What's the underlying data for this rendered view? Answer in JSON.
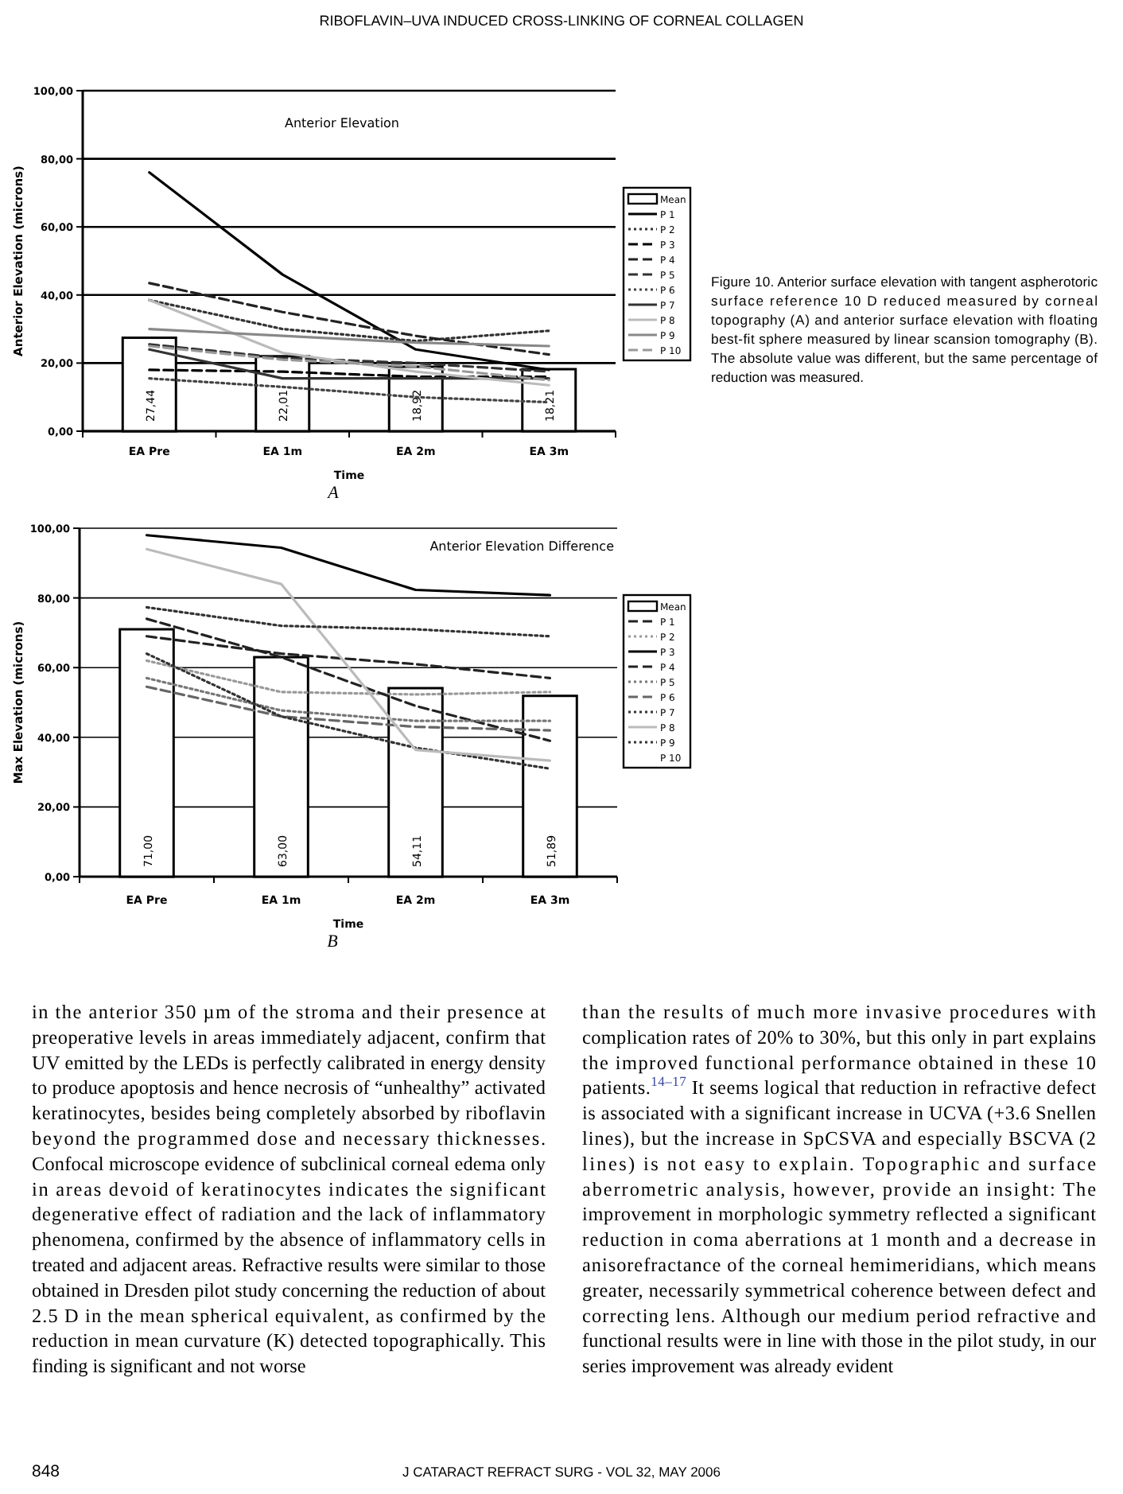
{
  "chart_data": [
    {
      "type": "line",
      "title": "Anterior Elevation",
      "xlabel": "Time",
      "ylabel": "Anterior Elevation (microns)",
      "categories": [
        "EA Pre",
        "EA 1m",
        "EA 2m",
        "EA 3m"
      ],
      "ylim": [
        0,
        100
      ],
      "yticks": [
        {
          "value": 0,
          "label": "0,00"
        },
        {
          "value": 20,
          "label": "20,00"
        },
        {
          "value": 40,
          "label": "40,00"
        },
        {
          "value": 60,
          "label": "60,00"
        },
        {
          "value": 80,
          "label": "80,00"
        },
        {
          "value": 100,
          "label": "100,00"
        }
      ],
      "grid": "y",
      "legend": "right",
      "annotations": [
        "A",
        "Figure 10. Anterior surface elevation with tangent aspherotoric surface reference 10 D reduced measured by corneal topography (A) and anterior surface elevation with floating best-fit sphere measured by linear scansion tomography (B). The absolute value was different, but the same percentage of reduction was measured."
      ],
      "series": [
        {
          "type": "bar",
          "name": "Mean",
          "color": "#ffffff",
          "values": [
            27.44,
            22.01,
            18.92,
            18.21
          ],
          "value_labels": [
            "27,44",
            "22,01",
            "18,92",
            "18,21"
          ]
        },
        {
          "name": "P 1",
          "color": "#000000",
          "line_style": "solid",
          "values": [
            76,
            46,
            24,
            18
          ]
        },
        {
          "name": "P 2",
          "color": "#333333",
          "line_style": "dotted",
          "values": [
            38.5,
            30,
            26.5,
            29.5
          ]
        },
        {
          "name": "P 3",
          "color": "#000000",
          "line_style": "dashed",
          "values": [
            18,
            17.5,
            16,
            16
          ]
        },
        {
          "name": "P 4",
          "color": "#222222",
          "line_style": "dashed",
          "values": [
            43.5,
            35,
            28,
            22.5
          ]
        },
        {
          "name": "P 5",
          "color": "#333333",
          "line_style": "dashed",
          "values": [
            25.5,
            21.5,
            20,
            17.5
          ]
        },
        {
          "name": "P 6",
          "color": "#444444",
          "line_style": "dotted",
          "values": [
            15.5,
            13,
            10,
            8.5
          ]
        },
        {
          "name": "P 7",
          "color": "#333333",
          "line_style": "solid",
          "values": [
            24,
            15.5,
            15.5,
            15.5
          ]
        },
        {
          "name": "P 8",
          "color": "#bbbbbb",
          "line_style": "solid",
          "values": [
            38.5,
            23,
            17.5,
            13.5
          ]
        },
        {
          "name": "P 9",
          "color": "#888888",
          "line_style": "solid",
          "values": [
            30,
            28,
            26,
            25
          ]
        },
        {
          "name": "P 10",
          "color": "#999999",
          "line_style": "dashed",
          "values": [
            25,
            21,
            19,
            15
          ]
        }
      ]
    },
    {
      "type": "line",
      "title": "Anterior Elevation Difference",
      "xlabel": "Time",
      "ylabel": "Max Elevation (microns)",
      "categories": [
        "EA Pre",
        "EA 1m",
        "EA 2m",
        "EA 3m"
      ],
      "ylim": [
        0,
        100
      ],
      "yticks": [
        {
          "value": 0,
          "label": "0,00"
        },
        {
          "value": 20,
          "label": "20,00"
        },
        {
          "value": 40,
          "label": "40,00"
        },
        {
          "value": 60,
          "label": "60,00"
        },
        {
          "value": 80,
          "label": "80,00"
        },
        {
          "value": 100,
          "label": "100,00"
        }
      ],
      "grid": "y",
      "legend": "right",
      "annotations": [
        "B"
      ],
      "series": [
        {
          "type": "bar",
          "name": "Mean",
          "color": "#ffffff",
          "values": [
            71.0,
            63.0,
            54.11,
            51.89
          ],
          "value_labels": [
            "71,00",
            "63,00",
            "54,11",
            "51,89"
          ]
        },
        {
          "name": "P 1",
          "color": "#222222",
          "line_style": "dashed",
          "values": [
            69,
            64,
            61,
            57
          ]
        },
        {
          "name": "P 2",
          "color": "#999999",
          "line_style": "dotted",
          "values": [
            62,
            53,
            52.3,
            53
          ]
        },
        {
          "name": "P 3",
          "color": "#000000",
          "line_style": "solid",
          "values": [
            98,
            94.4,
            82.3,
            80.8
          ]
        },
        {
          "name": "P 4",
          "color": "#222222",
          "line_style": "dashed",
          "values": [
            74,
            63,
            49,
            39
          ]
        },
        {
          "name": "P 5",
          "color": "#777777",
          "line_style": "dotted",
          "values": [
            57,
            47.7,
            44.7,
            44.7
          ]
        },
        {
          "name": "P 6",
          "color": "#666666",
          "line_style": "dashed",
          "values": [
            54.5,
            46,
            43,
            42
          ]
        },
        {
          "name": "P 7",
          "color": "#333333",
          "line_style": "dotted",
          "values": [
            64,
            46,
            37,
            31
          ]
        },
        {
          "name": "P 8",
          "color": "#bbbbbb",
          "line_style": "solid",
          "values": [
            94,
            84,
            36.4,
            33.3
          ]
        },
        {
          "name": "P 9",
          "color": "#333333",
          "line_style": "dotted",
          "values": [
            77.3,
            72,
            71,
            69
          ]
        },
        {
          "name": "P 10",
          "line_style": "solid",
          "values": [
            null,
            null,
            null,
            null
          ]
        }
      ]
    },
    {
      "type": "other",
      "title": "RIBOFLAVIN–UVA INDUCED CROSS-LINKING OF CORNEAL COLLAGEN",
      "annotations": [
        "in the anterior 350 µm of the stroma and their presence at preoperative levels in areas immediately adjacent, confirm that UV emitted by the LEDs is perfectly calibrated in energy density to produce apoptosis and hence necrosis of “unhealthy” activated keratinocytes, besides being completely absorbed by riboflavin beyond the programmed dose and necessary thicknesses. Confocal microscope evidence of subclinical corneal edema only in areas devoid of keratinocytes indicates the significant degenerative effect of radiation and the lack of inflammatory phenomena, confirmed by the absence of inflammatory cells in treated and adjacent areas. Refractive results were similar to those obtained in Dresden pilot study concerning the reduction of about 2.5 D in the mean spherical equivalent, as confirmed by the reduction in mean curvature (K) detected topographically. This finding is significant and not worse",
        "than the results of much more invasive procedures with complication rates of 20% to 30%, but this only in part explains the improved functional performance obtained in these 10 patients.$^{14–17}$ It seems logical that reduction in refractive defect is associated with a significant increase in UCVA (+3.6 Snellen lines), but the increase in SpCSVA and especially BSCVA (2 lines) is not easy to explain. Topographic and surface aberrometric analysis, however, provide an insight: The improvement in morphologic symmetry reflected a significant reduction in coma aberrations at 1 month and a decrease in anisorefractance of the corneal hemimeridians, which means greater, necessarily symmetrical coherence between defect and correcting lens. Although our medium period refractive and functional results were in line with those in the pilot study, in our series improvement was already evident",
        "848",
        "J CATARACT REFRACT SURG - VOL 32, MAY 2006"
      ]
    }
  ]
}
